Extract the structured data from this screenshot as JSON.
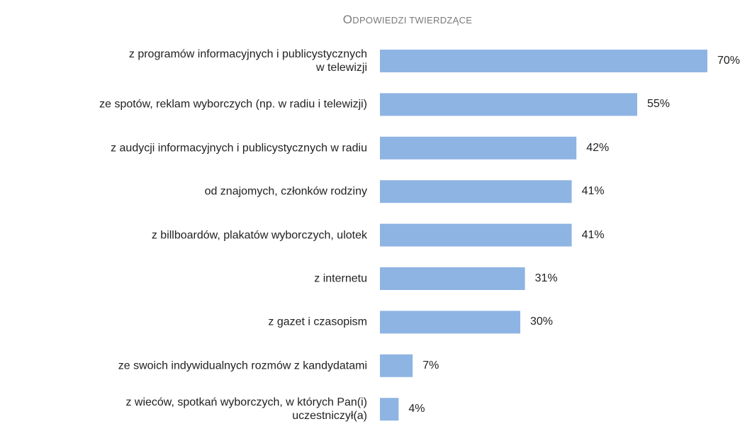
{
  "chart_data": {
    "type": "hbar",
    "title": "ODPOWIEDZI TWIERDZĄCE",
    "categories": [
      "z programów informacyjnych i publicystycznych\nw telewizji",
      "ze spotów, reklam wyborczych (np. w radiu i telewizji)",
      "z audycji informacyjnych i publicystycznych w radiu",
      "od znajomych, członków rodziny",
      "z billboardów, plakatów wyborczych, ulotek",
      "z internetu",
      "z gazet i czasopism",
      "ze swoich indywidualnych rozmów z kandydatami",
      "z wieców, spotkań wyborczych, w których Pan(i)\nuczestniczył(a)"
    ],
    "values": [
      70,
      55,
      42,
      41,
      41,
      31,
      30,
      7,
      4
    ],
    "value_labels": [
      "70%",
      "55%",
      "42%",
      "41%",
      "41%",
      "31%",
      "30%",
      "7%",
      "4%"
    ],
    "color": "#8eb4e3"
  }
}
